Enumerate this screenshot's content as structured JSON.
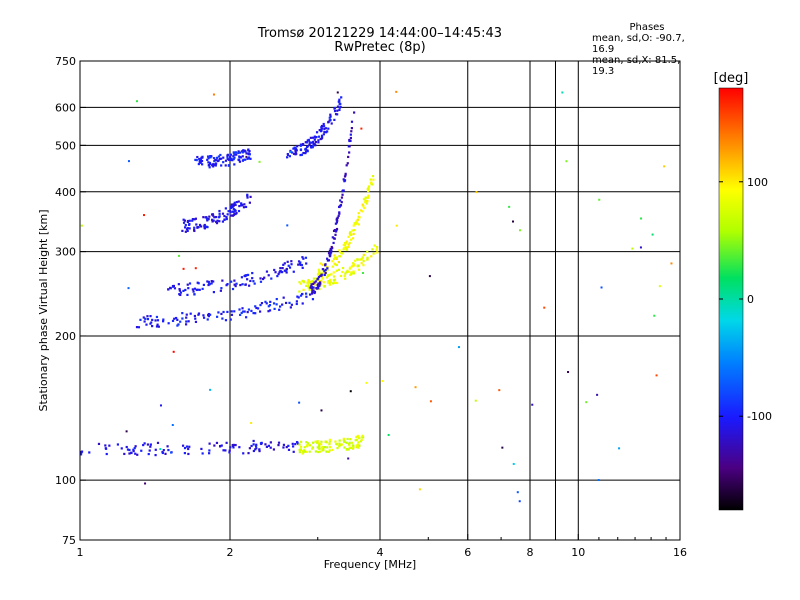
{
  "header": {
    "title_line1": "Tromsø 20121229 14:44:00–14:45:43",
    "title_line2": "RwPretec (8p)"
  },
  "phases_box": {
    "heading": "Phases",
    "line_o": "mean, sd,O: -90.7, 16.9",
    "line_x": "mean, sd,X:  81.5, 19.3"
  },
  "colorbar": {
    "unit_label": "[deg]",
    "tick_labels": [
      "100",
      "0",
      "-100"
    ],
    "tick_values": [
      100,
      0,
      -100
    ],
    "range": [
      -180,
      180
    ]
  },
  "chart_data": {
    "type": "scatter",
    "title": "Tromsø 20121229 14:44:00–14:45:43",
    "subtitle": "RwPretec (8p)",
    "xlabel": "Frequency [MHz]",
    "ylabel": "Stationary phase Virtual Height [km]",
    "x_scale": "log",
    "y_scale": "log",
    "xlim": [
      1,
      16
    ],
    "ylim": [
      75,
      750
    ],
    "x_ticks": [
      1,
      2,
      4,
      6,
      8,
      10,
      16
    ],
    "x_tick_labels": [
      "1",
      "2",
      "4",
      "6",
      "8",
      "10",
      "16"
    ],
    "y_ticks": [
      75,
      100,
      200,
      300,
      400,
      500,
      600,
      750
    ],
    "y_tick_labels": [
      "75",
      "100",
      "200",
      "300",
      "400",
      "500",
      "600",
      "750"
    ],
    "grid": true,
    "color_encodes": "phase [deg]",
    "traces": [
      {
        "name": "",
        "x_range": [
          1.0,
          2.75
        ],
        "height_start": 116,
        "height_end": 118,
        "phase": -110
      },
      {
        "name": "",
        "x_range": [
          2.75,
          3.7
        ],
        "height_start": 117,
        "height_end": 121,
        "phase": 75
      },
      {
        "name": "",
        "x_range": [
          1.3,
          3.0
        ],
        "height_start": 215,
        "height_end": 245,
        "phase": -100
      },
      {
        "name": "",
        "x_range": [
          1.5,
          2.9
        ],
        "height_start": 250,
        "height_end": 290,
        "phase": -105
      },
      {
        "name": "",
        "x_range": [
          2.75,
          3.95
        ],
        "height_start": 255,
        "height_end": 305,
        "phase": 85
      },
      {
        "name": "",
        "x_range": [
          3.0,
          3.9
        ],
        "height_start": 275,
        "height_end": 440,
        "phase": 90
      },
      {
        "name": "",
        "x_range": [
          1.6,
          2.2
        ],
        "height_start": 340,
        "height_end": 390,
        "phase": -110
      },
      {
        "name": "",
        "x_range": [
          1.7,
          2.2
        ],
        "height_start": 460,
        "height_end": 480,
        "phase": -100
      },
      {
        "name": "",
        "x_range": [
          2.6,
          3.35
        ],
        "height_start": 480,
        "height_end": 620,
        "phase": -105
      },
      {
        "name": "",
        "x_range": [
          2.9,
          3.55
        ],
        "height_start": 250,
        "height_end": 600,
        "phase": -120
      }
    ]
  }
}
